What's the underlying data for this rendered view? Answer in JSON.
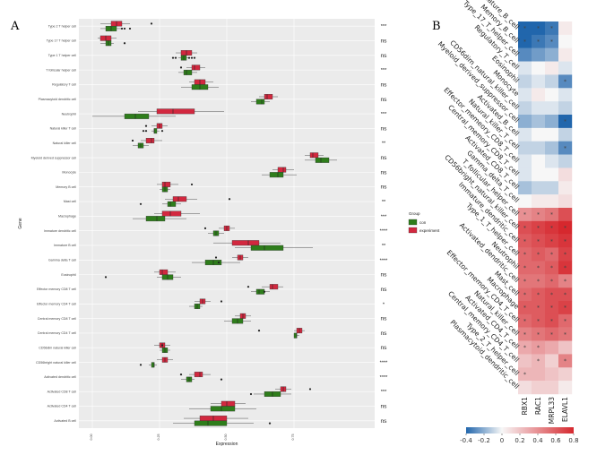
{
  "panels": {
    "a": "A",
    "b": "B"
  },
  "chart_data": [
    {
      "type": "boxplot",
      "title": "",
      "xlabel": "Expression",
      "ylabel": "Gene",
      "xlim": [
        -0.05,
        1.05
      ],
      "x_ticks": [
        0.0,
        0.25,
        0.5,
        0.75
      ],
      "x_tick_labels": [
        "0.00",
        "0.25",
        "0.50",
        "0.75"
      ],
      "legend": {
        "title": "Group",
        "position": "right",
        "items": [
          {
            "name": "con",
            "color": "#2e7d1b"
          },
          {
            "name": "experiment",
            "color": "#d2283f"
          }
        ]
      },
      "colors": {
        "con": "#2e7d1b",
        "experiment": "#d2283f",
        "panel_bg": "#ebebeb",
        "grid": "#ffffff"
      },
      "categories": [
        "Type 2 T helper cell",
        "Type 17 T helper cell",
        "Type 1 T helper cell",
        "T follicular helper cell",
        "Regulatory T cell",
        "Plasmacytoid dendritic cell",
        "Neutrophil",
        "Natural killer T cell",
        "Natural killer cell",
        "Myeloid derived suppressor cell",
        "Monocyte",
        "Memory B cell",
        "Mast cell",
        "Macrophage",
        "Immature dendritic cell",
        "Immature B cell",
        "Gamma delta T cell",
        "Eosinophil",
        "Effector memory CD8 T cell",
        "Effector memory CD4 T cell",
        "Central memory CD8 T cell",
        "Central memory CD4 T cell",
        "CD56dim natural killer cell",
        "CD56bright natural killer cell",
        "Activated dendritic cell",
        "Activated CD8 T cell",
        "Activated CD4 T cell",
        "Activated B cell"
      ],
      "significance": [
        "***",
        "ns",
        "ns",
        "***",
        "ns",
        "ns",
        "***",
        "ns",
        "**",
        "ns",
        "ns",
        "ns",
        "**",
        "***",
        "****",
        "**",
        "****",
        "ns",
        "ns",
        "*",
        "ns",
        "ns",
        "ns",
        "****",
        "****",
        "***",
        "ns",
        "ns"
      ],
      "series": [
        {
          "name": "experiment",
          "boxes": [
            [
              0.03,
              0.07,
              0.09,
              0.11,
              0.14
            ],
            [
              0.02,
              0.03,
              0.05,
              0.07,
              0.09
            ],
            [
              0.31,
              0.33,
              0.35,
              0.37,
              0.39
            ],
            [
              0.35,
              0.37,
              0.38,
              0.4,
              0.42
            ],
            [
              0.36,
              0.38,
              0.4,
              0.42,
              0.45
            ],
            [
              0.62,
              0.64,
              0.65,
              0.67,
              0.69
            ],
            [
              0.17,
              0.24,
              0.3,
              0.38,
              0.49
            ],
            [
              0.22,
              0.24,
              0.25,
              0.26,
              0.28
            ],
            [
              0.18,
              0.2,
              0.22,
              0.23,
              0.26
            ],
            [
              0.79,
              0.81,
              0.82,
              0.84,
              0.86
            ],
            [
              0.67,
              0.69,
              0.71,
              0.72,
              0.75
            ],
            [
              0.24,
              0.26,
              0.27,
              0.29,
              0.32
            ],
            [
              0.27,
              0.3,
              0.32,
              0.35,
              0.39
            ],
            [
              0.23,
              0.26,
              0.29,
              0.33,
              0.4
            ],
            [
              0.47,
              0.49,
              0.5,
              0.51,
              0.53
            ],
            [
              0.45,
              0.52,
              0.58,
              0.62,
              0.7
            ],
            [
              0.52,
              0.54,
              0.55,
              0.56,
              0.58
            ],
            [
              0.23,
              0.25,
              0.26,
              0.28,
              0.31
            ],
            [
              0.63,
              0.66,
              0.67,
              0.69,
              0.71
            ],
            [
              0.38,
              0.4,
              0.41,
              0.42,
              0.44
            ],
            [
              0.53,
              0.55,
              0.56,
              0.57,
              0.59
            ],
            [
              0.75,
              0.76,
              0.77,
              0.78,
              0.79
            ],
            [
              0.23,
              0.25,
              0.26,
              0.27,
              0.29
            ],
            [
              0.24,
              0.26,
              0.27,
              0.28,
              0.3
            ],
            [
              0.36,
              0.38,
              0.4,
              0.41,
              0.44
            ],
            [
              0.68,
              0.7,
              0.71,
              0.72,
              0.74
            ],
            [
              0.44,
              0.48,
              0.5,
              0.53,
              0.57
            ],
            [
              0.34,
              0.4,
              0.45,
              0.5,
              0.58
            ]
          ]
        },
        {
          "name": "con",
          "boxes": [
            [
              0.03,
              0.05,
              0.07,
              0.09,
              0.11
            ],
            [
              0.03,
              0.05,
              0.06,
              0.07,
              0.08
            ],
            [
              0.32,
              0.33,
              0.34,
              0.35,
              0.36
            ],
            [
              0.32,
              0.34,
              0.35,
              0.37,
              0.39
            ],
            [
              0.33,
              0.37,
              0.4,
              0.43,
              0.47
            ],
            [
              0.59,
              0.61,
              0.63,
              0.64,
              0.66
            ],
            [
              0.0,
              0.12,
              0.16,
              0.21,
              0.31
            ],
            [
              0.22,
              0.23,
              0.23,
              0.24,
              0.25
            ],
            [
              0.15,
              0.17,
              0.18,
              0.19,
              0.21
            ],
            [
              0.79,
              0.83,
              0.85,
              0.88,
              0.91
            ],
            [
              0.63,
              0.66,
              0.69,
              0.71,
              0.76
            ],
            [
              0.25,
              0.26,
              0.27,
              0.28,
              0.29
            ],
            [
              0.26,
              0.28,
              0.29,
              0.31,
              0.33
            ],
            [
              0.15,
              0.2,
              0.24,
              0.27,
              0.35
            ],
            [
              0.43,
              0.45,
              0.46,
              0.47,
              0.49
            ],
            [
              0.53,
              0.59,
              0.64,
              0.71,
              0.82
            ],
            [
              0.37,
              0.42,
              0.45,
              0.48,
              0.55
            ],
            [
              0.24,
              0.26,
              0.28,
              0.3,
              0.33
            ],
            [
              0.59,
              0.61,
              0.62,
              0.64,
              0.66
            ],
            [
              0.36,
              0.38,
              0.39,
              0.4,
              0.41
            ],
            [
              0.49,
              0.52,
              0.54,
              0.56,
              0.59
            ],
            [
              0.75,
              0.75,
              0.76,
              0.76,
              0.77
            ],
            [
              0.25,
              0.26,
              0.27,
              0.28,
              0.29
            ],
            [
              0.21,
              0.22,
              0.23,
              0.23,
              0.24
            ],
            [
              0.33,
              0.35,
              0.36,
              0.37,
              0.38
            ],
            [
              0.6,
              0.64,
              0.67,
              0.7,
              0.74
            ],
            [
              0.36,
              0.44,
              0.48,
              0.53,
              0.61
            ],
            [
              0.3,
              0.38,
              0.43,
              0.5,
              0.6
            ]
          ]
        }
      ],
      "outliers": [
        {
          "gene": "Type 2 T helper cell",
          "group": "experiment",
          "x": [
            0.22
          ]
        },
        {
          "gene": "Type 2 T helper cell",
          "group": "con",
          "x": [
            0.11,
            0.12,
            0.14
          ]
        },
        {
          "gene": "Type 17 T helper cell",
          "group": "con",
          "x": [
            0.12
          ]
        },
        {
          "gene": "Type 1 T helper cell",
          "group": "con",
          "x": [
            0.3,
            0.31,
            0.36,
            0.37,
            0.38
          ]
        },
        {
          "gene": "T follicular helper cell",
          "group": "experiment",
          "x": [
            0.33
          ]
        },
        {
          "gene": "Natural killer T cell",
          "group": "experiment",
          "x": [
            0.2
          ]
        },
        {
          "gene": "Natural killer T cell",
          "group": "con",
          "x": [
            0.19,
            0.2,
            0.26
          ]
        },
        {
          "gene": "Natural killer cell",
          "group": "experiment",
          "x": [
            0.15
          ]
        },
        {
          "gene": "Memory B cell",
          "group": "experiment",
          "x": [
            0.37
          ]
        },
        {
          "gene": "Mast cell",
          "group": "experiment",
          "x": [
            0.51
          ]
        },
        {
          "gene": "Mast cell",
          "group": "con",
          "x": [
            0.18
          ]
        },
        {
          "gene": "Immature dendritic cell",
          "group": "experiment",
          "x": [
            0.42
          ]
        },
        {
          "gene": "Gamma delta T cell",
          "group": "experiment",
          "x": [
            0.46
          ]
        },
        {
          "gene": "Gamma delta T cell",
          "group": "con",
          "x": [
            0.47
          ]
        },
        {
          "gene": "Eosinophil",
          "group": "con",
          "x": [
            0.05
          ]
        },
        {
          "gene": "Effector memory CD8 T cell",
          "group": "experiment",
          "x": [
            0.58
          ]
        },
        {
          "gene": "Effector memory CD8 T cell",
          "group": "con",
          "x": [
            0.64
          ]
        },
        {
          "gene": "Effector memory CD4 T cell",
          "group": "experiment",
          "x": [
            0.48
          ]
        },
        {
          "gene": "Central memory CD4 T cell",
          "group": "experiment",
          "x": [
            0.62
          ]
        },
        {
          "gene": "CD56dim natural killer cell",
          "group": "experiment",
          "x": [
            0.26
          ]
        },
        {
          "gene": "CD56bright natural killer cell",
          "group": "con",
          "x": [
            0.18
          ]
        },
        {
          "gene": "Activated dendritic cell",
          "group": "experiment",
          "x": [
            0.33
          ]
        },
        {
          "gene": "Activated dendritic cell",
          "group": "con",
          "x": [
            0.48
          ]
        },
        {
          "gene": "Activated CD8 T cell",
          "group": "experiment",
          "x": [
            0.81
          ]
        },
        {
          "gene": "Activated CD8 T cell",
          "group": "con",
          "x": [
            0.59
          ]
        },
        {
          "gene": "Activated B cell",
          "group": "con",
          "x": [
            0.66
          ]
        }
      ]
    },
    {
      "type": "heatmap",
      "rows": [
        "Immature_B_cell",
        "Memory_B_cell",
        "Type_17_T_helper_cell",
        "Regulatory_T_cell",
        "Eosinophil",
        "Monocyte",
        "CD56dim_natural_killer_cell",
        "Myeloid_derived_suppressor_cell",
        "Activated_B_cell",
        "Natural_killer_T_cell",
        "Effector_memeory_CD8_T_cell",
        "Central_memory_CD8_T_cell",
        "Activated_CD8_T_cell",
        "Gamma_delta_T_cell",
        "T_follicular_helper_cell",
        "CD56bright_natural_killer_cell",
        "Immature_dendritic_cell",
        "Type_1_T_helper_cell",
        "Neutrophil",
        "Activated_dendritic_cell",
        "Mast_cell",
        "Macrophage",
        "Effector_memory_CD4_T_cell",
        "Natural_killer_cell",
        "Activated_CD4_T_cell",
        "Central_memory_CD4_T_cell",
        "Type_2_T_helper_cell",
        "Plasmacytoid_dendritic_cell"
      ],
      "columns": [
        "RBX1",
        "RAC1",
        "MRPL33",
        "ELAVL1"
      ],
      "values": [
        [
          -0.45,
          -0.4,
          -0.35,
          0.05
        ],
        [
          -0.4,
          -0.35,
          -0.3,
          0.0
        ],
        [
          -0.3,
          -0.25,
          -0.2,
          0.05
        ],
        [
          -0.05,
          0.0,
          0.05,
          -0.05
        ],
        [
          -0.1,
          -0.05,
          -0.1,
          -0.3
        ],
        [
          -0.05,
          0.05,
          0.0,
          -0.05
        ],
        [
          -0.1,
          -0.05,
          -0.05,
          -0.1
        ],
        [
          -0.2,
          -0.15,
          -0.2,
          -0.4
        ],
        [
          -0.05,
          0.0,
          0.0,
          -0.1
        ],
        [
          -0.1,
          -0.1,
          -0.15,
          -0.3
        ],
        [
          -0.05,
          0.0,
          -0.05,
          -0.1
        ],
        [
          -0.05,
          0.0,
          0.0,
          0.1
        ],
        [
          -0.15,
          -0.1,
          -0.1,
          0.05
        ],
        [
          0.0,
          0.05,
          0.05,
          0.1
        ],
        [
          0.4,
          0.45,
          0.5,
          0.65
        ],
        [
          0.65,
          0.7,
          0.75,
          0.8
        ],
        [
          0.6,
          0.65,
          0.7,
          0.75
        ],
        [
          0.55,
          0.6,
          0.55,
          0.7
        ],
        [
          0.55,
          0.55,
          0.6,
          0.75
        ],
        [
          0.5,
          0.5,
          0.55,
          0.45
        ],
        [
          0.55,
          0.6,
          0.65,
          0.65
        ],
        [
          0.6,
          0.6,
          0.65,
          0.7
        ],
        [
          0.55,
          0.6,
          0.65,
          0.55
        ],
        [
          0.45,
          0.5,
          0.55,
          0.5
        ],
        [
          0.3,
          0.35,
          0.3,
          0.2
        ],
        [
          0.2,
          0.25,
          0.15,
          0.45
        ],
        [
          0.25,
          0.25,
          0.2,
          0.15
        ],
        [
          0.1,
          0.15,
          0.15,
          0.05
        ]
      ],
      "marks": [
        [
          1,
          1,
          1,
          0
        ],
        [
          1,
          1,
          1,
          0
        ],
        [
          0,
          0,
          0,
          0
        ],
        [
          0,
          0,
          0,
          0
        ],
        [
          0,
          0,
          0,
          1
        ],
        [
          0,
          0,
          0,
          0
        ],
        [
          0,
          0,
          0,
          0
        ],
        [
          0,
          0,
          0,
          1
        ],
        [
          0,
          0,
          0,
          0
        ],
        [
          0,
          0,
          0,
          1
        ],
        [
          0,
          0,
          0,
          0
        ],
        [
          0,
          0,
          0,
          0
        ],
        [
          0,
          0,
          0,
          0
        ],
        [
          0,
          0,
          0,
          0
        ],
        [
          1,
          1,
          1,
          0
        ],
        [
          1,
          1,
          1,
          1
        ],
        [
          1,
          1,
          1,
          1
        ],
        [
          1,
          1,
          1,
          1
        ],
        [
          1,
          1,
          1,
          1
        ],
        [
          1,
          1,
          1,
          1
        ],
        [
          1,
          1,
          1,
          1
        ],
        [
          1,
          1,
          1,
          1
        ],
        [
          1,
          1,
          1,
          1
        ],
        [
          1,
          1,
          1,
          1
        ],
        [
          1,
          1,
          0,
          0
        ],
        [
          0,
          1,
          0,
          1
        ],
        [
          1,
          0,
          0,
          0
        ],
        [
          0,
          0,
          0,
          0
        ]
      ],
      "mark_symbol": "*",
      "colorbar": {
        "min": -0.4,
        "max": 0.8,
        "ticks": [
          -0.4,
          -0.2,
          0,
          0.2,
          0.4,
          0.6,
          0.8
        ],
        "tick_labels": [
          "-0.4",
          "-0.2",
          "0",
          "0.2",
          "0.4",
          "0.6",
          "0.8"
        ],
        "low_color": "#2166ac",
        "mid_color": "#f7f7f7",
        "high_color": "#d6282e"
      }
    }
  ]
}
